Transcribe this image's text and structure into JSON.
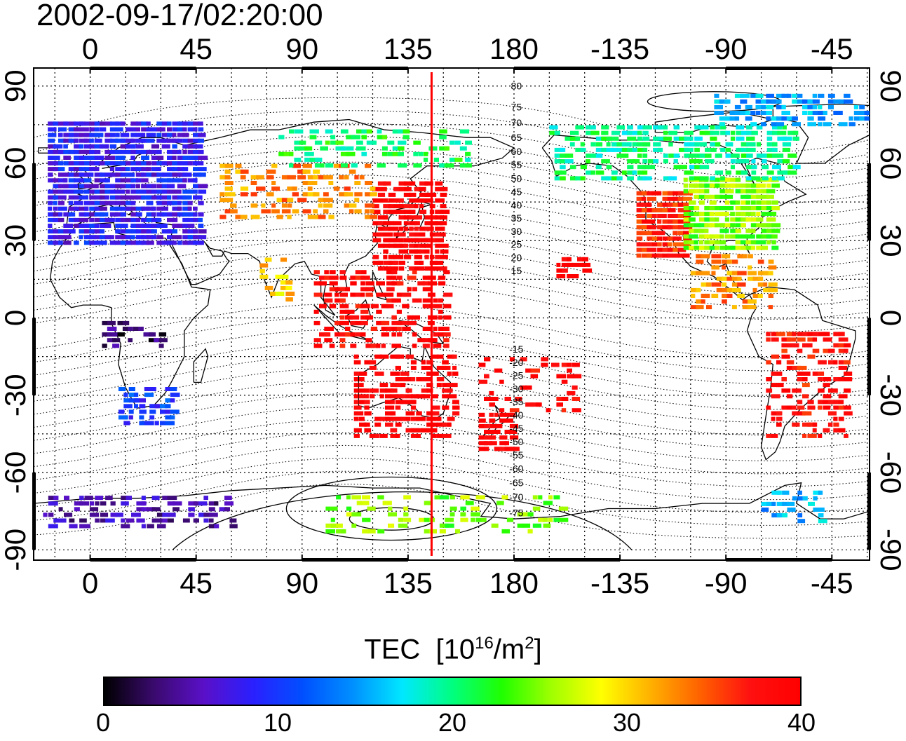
{
  "timestamp": "2002-09-17/02:20:00",
  "map": {
    "longitude_ticks": [
      {
        "lon": 0,
        "label": "0"
      },
      {
        "lon": 45,
        "label": "45"
      },
      {
        "lon": 90,
        "label": "90"
      },
      {
        "lon": 135,
        "label": "135"
      },
      {
        "lon": 180,
        "label": "180"
      },
      {
        "lon": 225,
        "label": "-135"
      },
      {
        "lon": 270,
        "label": "-90"
      },
      {
        "lon": 315,
        "label": "-45"
      }
    ],
    "latitude_ticks": [
      {
        "lat": 90,
        "label": "90"
      },
      {
        "lat": 60,
        "label": "60"
      },
      {
        "lat": 30,
        "label": "30"
      },
      {
        "lat": 0,
        "label": "0"
      },
      {
        "lat": -30,
        "label": "-30"
      },
      {
        "lat": -60,
        "label": "-60"
      },
      {
        "lat": -90,
        "label": "-90"
      }
    ],
    "lon_range": [
      -24,
      331
    ],
    "lat_range": [
      -94,
      97
    ],
    "grid": true,
    "meridian_marker": {
      "lon": 145,
      "color": "#ff0000"
    },
    "contour_labels": [
      "80",
      "75",
      "70",
      "65",
      "60",
      "55",
      "50",
      "45",
      "40",
      "35",
      "30",
      "25",
      "20",
      "15",
      "-15",
      "-20",
      "-25",
      "-30",
      "-35",
      "-40",
      "-45",
      "-50",
      "-55",
      "-60",
      "-65",
      "-70",
      "-75"
    ]
  },
  "colorbar": {
    "title": "TEC",
    "unit_base": "[10",
    "unit_exp": "16",
    "unit_mid": "/m",
    "unit_exp2": "2",
    "unit_end": "]",
    "min": 0,
    "max": 40,
    "ticks": [
      "0",
      "10",
      "20",
      "30",
      "40"
    ],
    "colors": [
      "#000000",
      "#3a0a6e",
      "#5a10c8",
      "#2a20ff",
      "#0050ff",
      "#0090ff",
      "#00e8ff",
      "#00ff80",
      "#20ff00",
      "#a0ff00",
      "#ffff00",
      "#ffb000",
      "#ff6000",
      "#ff1010",
      "#ff0000"
    ]
  },
  "tec_regions": [
    {
      "name": "europe",
      "lon": [
        -18,
        48
      ],
      "lat": [
        30,
        77
      ],
      "value": 8,
      "density": 0.85
    },
    {
      "name": "north-america-west",
      "lon": [
        232,
        252
      ],
      "lat": [
        25,
        50
      ],
      "value": 37,
      "density": 0.9
    },
    {
      "name": "north-america-central",
      "lon": [
        252,
        290
      ],
      "lat": [
        28,
        55
      ],
      "value": 25,
      "density": 0.85
    },
    {
      "name": "north-america-north",
      "lon": [
        195,
        300
      ],
      "lat": [
        55,
        75
      ],
      "value": 20,
      "density": 0.5
    },
    {
      "name": "arctic",
      "lon": [
        265,
        330
      ],
      "lat": [
        76,
        88
      ],
      "value": 15,
      "density": 0.5
    },
    {
      "name": "east-asia",
      "lon": [
        120,
        150
      ],
      "lat": [
        20,
        55
      ],
      "value": 40,
      "density": 0.75
    },
    {
      "name": "central-asia",
      "lon": [
        55,
        120
      ],
      "lat": [
        40,
        60
      ],
      "value": 33,
      "density": 0.35
    },
    {
      "name": "siberia",
      "lon": [
        80,
        160
      ],
      "lat": [
        60,
        75
      ],
      "value": 21,
      "density": 0.3
    },
    {
      "name": "southeast-asia",
      "lon": [
        95,
        150
      ],
      "lat": [
        -10,
        20
      ],
      "value": 39,
      "density": 0.4
    },
    {
      "name": "australia",
      "lon": [
        112,
        155
      ],
      "lat": [
        -45,
        -12
      ],
      "value": 40,
      "density": 0.45
    },
    {
      "name": "new-zealand",
      "lon": [
        165,
        180
      ],
      "lat": [
        -50,
        -35
      ],
      "value": 40,
      "density": 0.7
    },
    {
      "name": "pacific-south",
      "lon": [
        165,
        205
      ],
      "lat": [
        -35,
        -15
      ],
      "value": 39,
      "density": 0.3
    },
    {
      "name": "hawaii",
      "lon": [
        198,
        210
      ],
      "lat": [
        17,
        24
      ],
      "value": 40,
      "density": 0.7
    },
    {
      "name": "south-america",
      "lon": [
        287,
        320
      ],
      "lat": [
        -45,
        -5
      ],
      "value": 38,
      "density": 0.45
    },
    {
      "name": "central-america",
      "lon": [
        255,
        290
      ],
      "lat": [
        5,
        25
      ],
      "value": 33,
      "density": 0.45
    },
    {
      "name": "africa-south",
      "lon": [
        12,
        35
      ],
      "lat": [
        -40,
        -25
      ],
      "value": 10,
      "density": 0.55
    },
    {
      "name": "africa-central",
      "lon": [
        5,
        30
      ],
      "lat": [
        -10,
        0
      ],
      "value": 3,
      "density": 0.35
    },
    {
      "name": "antarctica-west",
      "lon": [
        -20,
        60
      ],
      "lat": [
        -80,
        -68
      ],
      "value": 5,
      "density": 0.4
    },
    {
      "name": "antarctica-east",
      "lon": [
        100,
        200
      ],
      "lat": [
        -82,
        -68
      ],
      "value": 25,
      "density": 0.25
    },
    {
      "name": "antarctica-peninsula",
      "lon": [
        285,
        310
      ],
      "lat": [
        -78,
        -65
      ],
      "value": 15,
      "density": 0.45
    },
    {
      "name": "india",
      "lon": [
        72,
        85
      ],
      "lat": [
        8,
        25
      ],
      "value": 30,
      "density": 0.35
    }
  ]
}
